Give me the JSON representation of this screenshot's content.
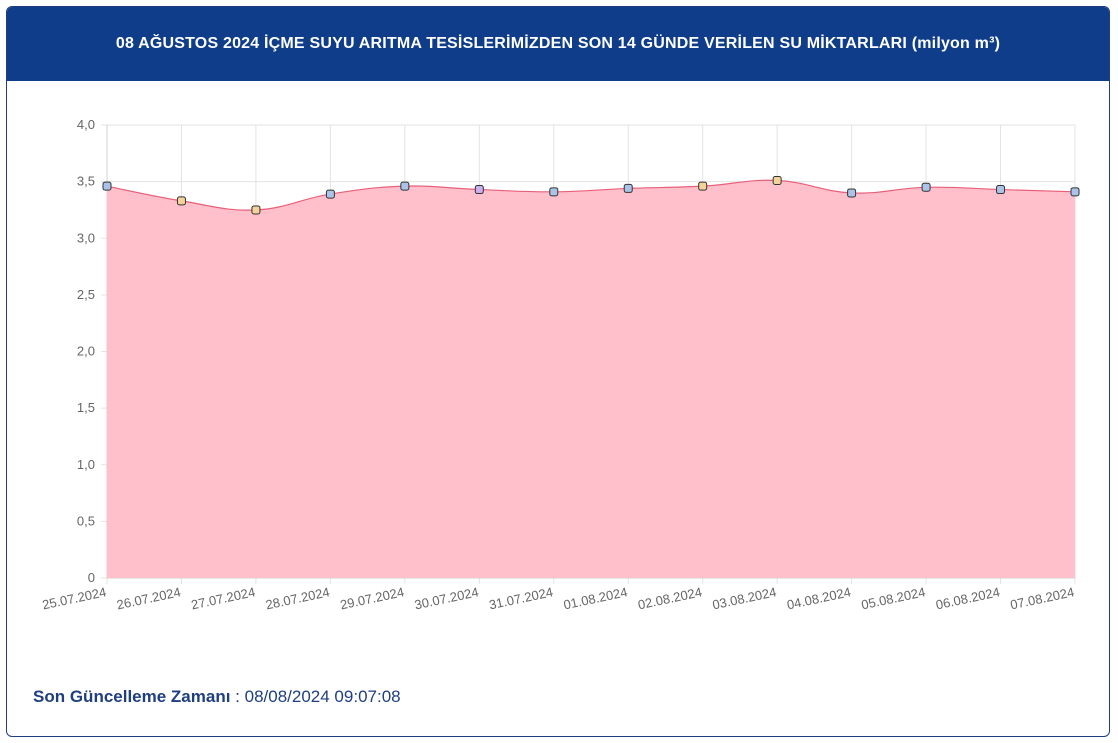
{
  "header": {
    "title": "08 AĞUSTOS 2024 İÇME SUYU ARITMA TESİSLERİMİZDEN SON 14 GÜNDE VERİLEN SU MİKTARLARI (milyon m³)"
  },
  "colors": {
    "header_bg": "#0f3d8a",
    "area_fill": "#ffc0cb",
    "line": "#e8607a",
    "grid": "#e3e3e3",
    "footer_text": "#1f3f80"
  },
  "chart_data": {
    "type": "area",
    "title": "08 AĞUSTOS 2024 İÇME SUYU ARITMA TESİSLERİMİZDEN SON 14 GÜNDE VERİLEN SU MİKTARLARI (milyon m³)",
    "xlabel": "",
    "ylabel": "",
    "categories": [
      "25.07.2024",
      "26.07.2024",
      "27.07.2024",
      "28.07.2024",
      "29.07.2024",
      "30.07.2024",
      "31.07.2024",
      "01.08.2024",
      "02.08.2024",
      "03.08.2024",
      "04.08.2024",
      "05.08.2024",
      "06.08.2024",
      "07.08.2024"
    ],
    "values": [
      3.46,
      3.33,
      3.25,
      3.39,
      3.46,
      3.43,
      3.41,
      3.44,
      3.46,
      3.51,
      3.4,
      3.45,
      3.43,
      3.41
    ],
    "ylim": [
      0,
      4
    ],
    "yticks": [
      "0",
      "0,5",
      "1,0",
      "1,5",
      "2,0",
      "2,5",
      "3,0",
      "3,5",
      "4,0"
    ],
    "ytick_values": [
      0,
      0.5,
      1.0,
      1.5,
      2.0,
      2.5,
      3.0,
      3.5,
      4.0
    ],
    "point_colors": [
      "#a9c4e8",
      "#f2d49a",
      "#f2d49a",
      "#a9c4e8",
      "#a9c4e8",
      "#c9b0ec",
      "#a9c4e8",
      "#a9c4e8",
      "#f2d49a",
      "#f2d49a",
      "#a9c4e8",
      "#a9c4e8",
      "#a9c4e8",
      "#a9c4e8"
    ],
    "grid": true,
    "legend": "none"
  },
  "footer": {
    "label": "Son Güncelleme Zamanı",
    "separator": " : ",
    "value": "08/08/2024 09:07:08"
  }
}
